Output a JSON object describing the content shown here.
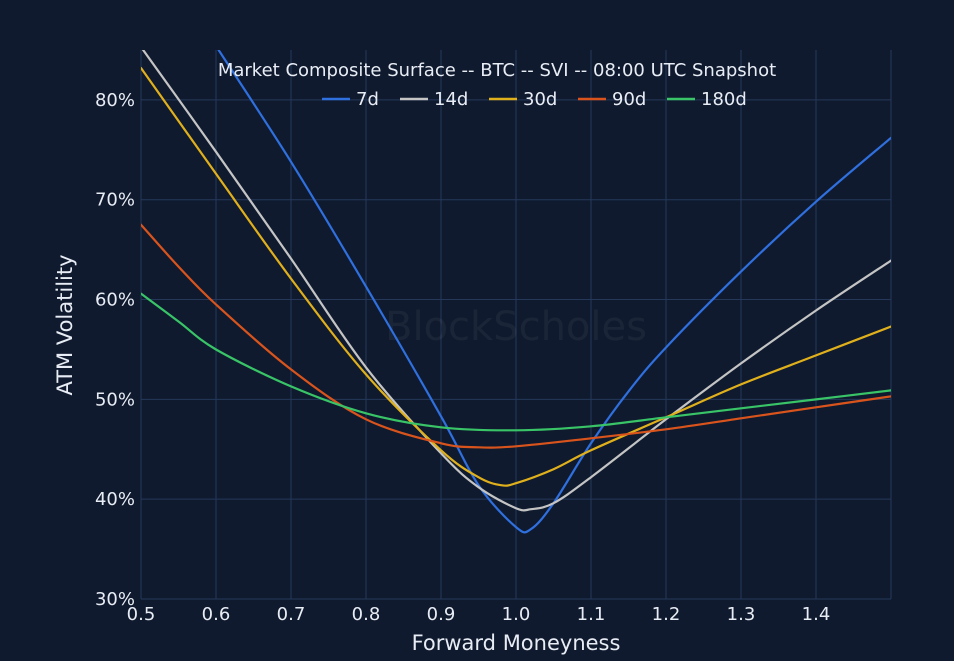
{
  "chart_data": {
    "type": "line",
    "title": "Market Composite Surface -- BTC -- SVI -- 08:00 UTC Snapshot",
    "xlabel": "Forward Moneyness",
    "ylabel": "ATM Volatility",
    "watermark": "BlockScholes",
    "xlim": [
      0.5,
      1.5
    ],
    "ylim": [
      30,
      85
    ],
    "xticks": [
      0.5,
      0.6,
      0.7,
      0.8,
      0.9,
      1.0,
      1.1,
      1.2,
      1.3,
      1.4
    ],
    "xtick_labels": [
      "0.5",
      "0.6",
      "0.7",
      "0.8",
      "0.9",
      "1.0",
      "1.1",
      "1.2",
      "1.3",
      "1.4"
    ],
    "yticks": [
      30,
      40,
      50,
      60,
      70,
      80
    ],
    "ytick_labels": [
      "30%",
      "40%",
      "50%",
      "60%",
      "70%",
      "80%"
    ],
    "grid": true,
    "legend_position": "top-center",
    "background_color": "#0f1a2e",
    "series": [
      {
        "name": "7d",
        "color": "#2f6fde",
        "x": [
          0.6,
          0.7,
          0.8,
          0.9,
          0.95,
          1.0,
          1.02,
          1.05,
          1.1,
          1.15,
          1.2,
          1.3,
          1.4,
          1.5
        ],
        "y": [
          85.4,
          73.8,
          61.3,
          48.3,
          41.4,
          37.2,
          37.0,
          39.6,
          45.6,
          50.8,
          55.2,
          62.8,
          69.8,
          76.2
        ]
      },
      {
        "name": "14d",
        "color": "#c4c4c4",
        "x": [
          0.5,
          0.6,
          0.7,
          0.8,
          0.9,
          0.95,
          1.0,
          1.02,
          1.05,
          1.1,
          1.2,
          1.3,
          1.4,
          1.5
        ],
        "y": [
          85.3,
          74.8,
          64.1,
          53.2,
          44.6,
          41.2,
          39.1,
          39.0,
          39.6,
          42.2,
          48.0,
          53.6,
          58.9,
          63.9
        ]
      },
      {
        "name": "30d",
        "color": "#e0b01c",
        "x": [
          0.5,
          0.6,
          0.7,
          0.8,
          0.9,
          0.95,
          0.98,
          1.0,
          1.05,
          1.1,
          1.2,
          1.3,
          1.4,
          1.5
        ],
        "y": [
          83.2,
          72.6,
          62.1,
          52.5,
          44.9,
          42.2,
          41.4,
          41.6,
          43.0,
          44.9,
          48.2,
          51.5,
          54.4,
          57.3
        ]
      },
      {
        "name": "90d",
        "color": "#d9541c",
        "x": [
          0.5,
          0.55,
          0.6,
          0.7,
          0.8,
          0.9,
          0.95,
          1.0,
          1.1,
          1.2,
          1.3,
          1.4,
          1.5
        ],
        "y": [
          67.5,
          63.3,
          59.5,
          53.0,
          48.0,
          45.6,
          45.2,
          45.3,
          46.1,
          47.0,
          48.1,
          49.2,
          50.3
        ]
      },
      {
        "name": "180d",
        "color": "#39c467",
        "x": [
          0.5,
          0.55,
          0.6,
          0.7,
          0.8,
          0.9,
          1.0,
          1.1,
          1.2,
          1.3,
          1.4,
          1.5
        ],
        "y": [
          60.6,
          57.8,
          55.0,
          51.3,
          48.6,
          47.2,
          46.9,
          47.3,
          48.2,
          49.1,
          50.0,
          50.9
        ]
      }
    ]
  }
}
